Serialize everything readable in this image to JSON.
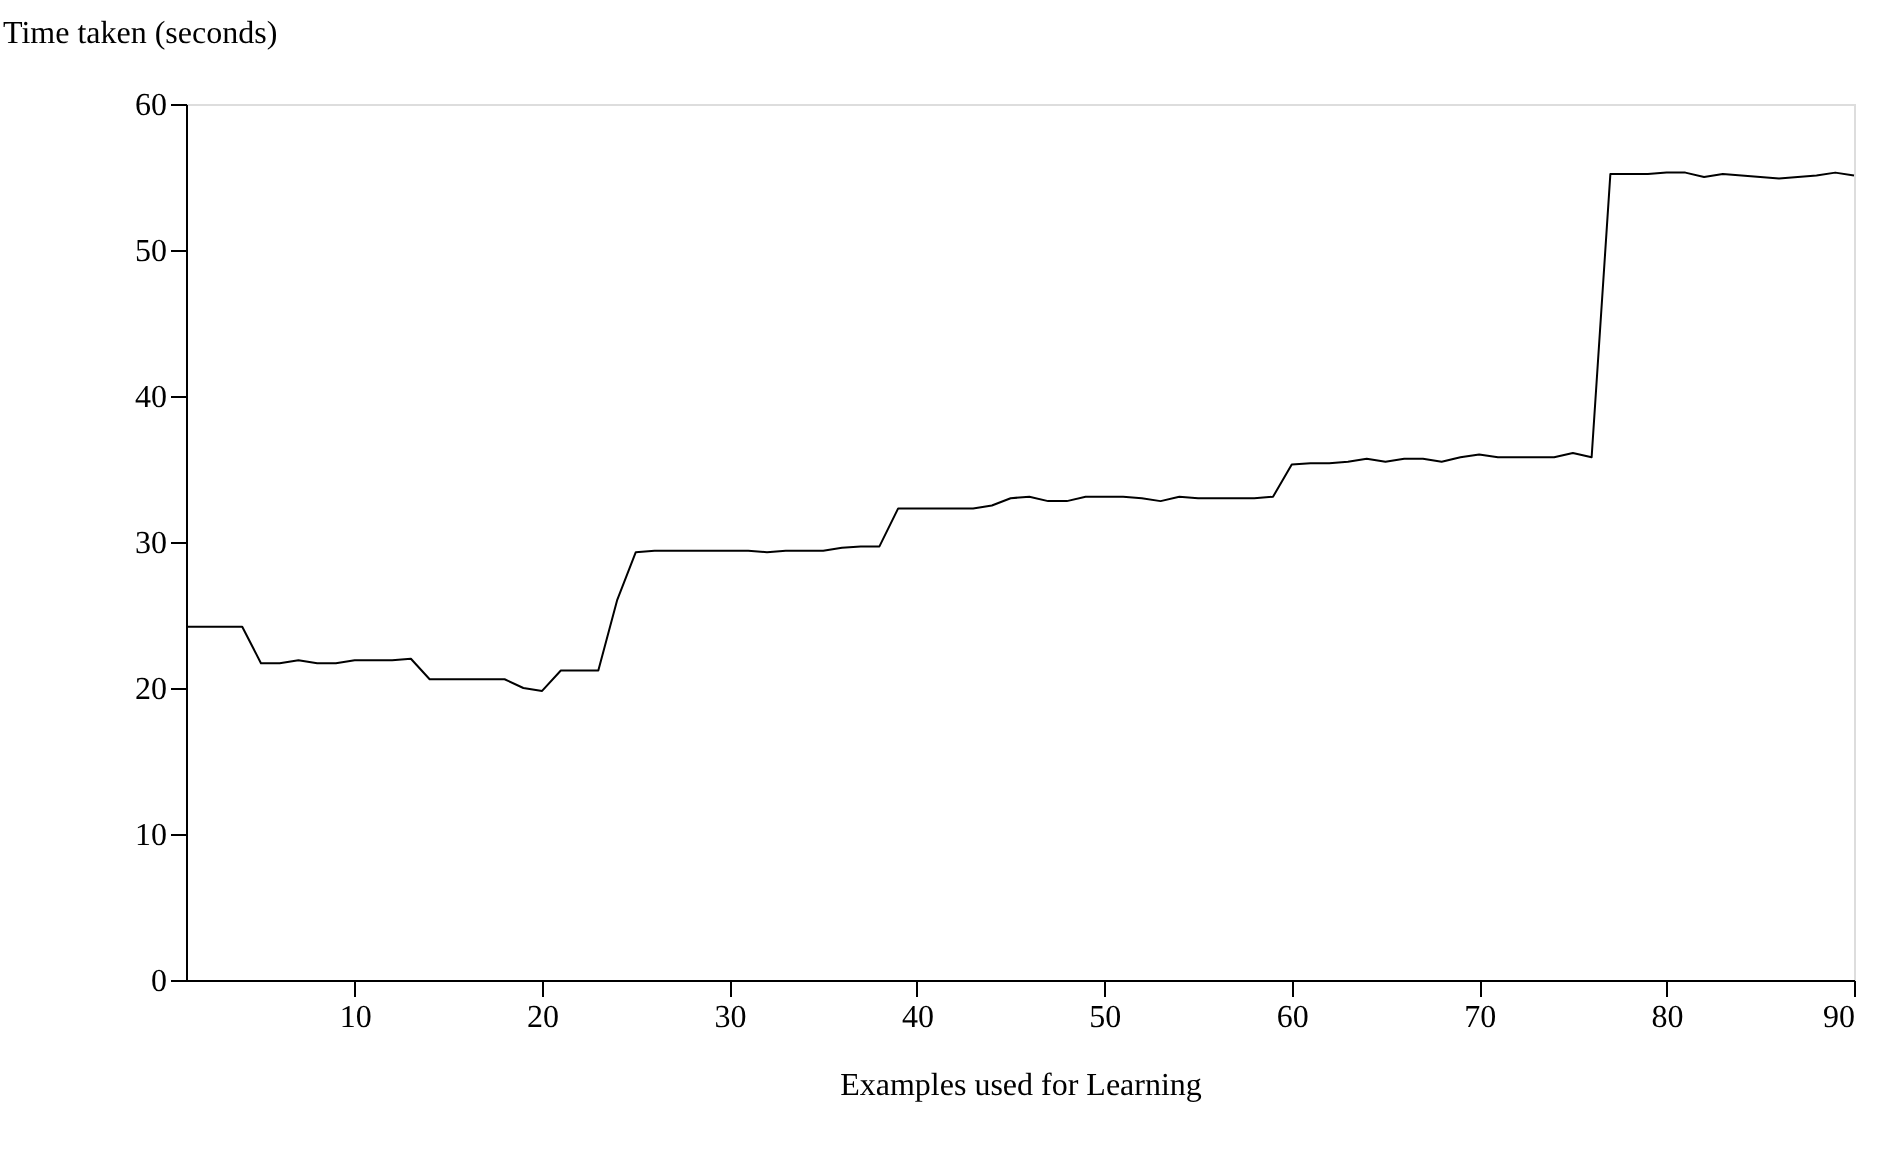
{
  "chart_data": {
    "type": "line",
    "xlabel": "Examples used for Learning",
    "ylabel": "Time taken (seconds)",
    "x": [
      1,
      2,
      3,
      4,
      5,
      6,
      7,
      8,
      9,
      10,
      11,
      12,
      13,
      14,
      15,
      16,
      17,
      18,
      19,
      20,
      21,
      22,
      23,
      24,
      25,
      26,
      27,
      28,
      29,
      30,
      31,
      32,
      33,
      34,
      35,
      36,
      37,
      38,
      39,
      40,
      41,
      42,
      43,
      44,
      45,
      46,
      47,
      48,
      49,
      50,
      51,
      52,
      53,
      54,
      55,
      56,
      57,
      58,
      59,
      60,
      61,
      62,
      63,
      64,
      65,
      66,
      67,
      68,
      69,
      70,
      71,
      72,
      73,
      74,
      75,
      76,
      77,
      78,
      79,
      80,
      81,
      82,
      83,
      84,
      85,
      86,
      87,
      88,
      89,
      90
    ],
    "series": [
      {
        "color": "#000000",
        "values": [
          24.2,
          24.2,
          24.2,
          24.2,
          21.7,
          21.7,
          21.9,
          21.7,
          21.7,
          21.9,
          21.9,
          21.9,
          22.0,
          20.6,
          20.6,
          20.6,
          20.6,
          20.6,
          20.0,
          19.8,
          21.2,
          21.2,
          21.2,
          26.0,
          29.3,
          29.4,
          29.4,
          29.4,
          29.4,
          29.4,
          29.4,
          29.3,
          29.4,
          29.4,
          29.4,
          29.6,
          29.7,
          29.7,
          32.3,
          32.3,
          32.3,
          32.3,
          32.3,
          32.5,
          33.0,
          33.1,
          32.8,
          32.8,
          33.1,
          33.1,
          33.1,
          33.0,
          32.8,
          33.1,
          33.0,
          33.0,
          33.0,
          33.0,
          33.1,
          35.3,
          35.4,
          35.4,
          35.5,
          35.7,
          35.5,
          35.7,
          35.7,
          35.5,
          35.8,
          36.0,
          35.8,
          35.8,
          35.8,
          35.8,
          36.1,
          35.8,
          55.2,
          55.2,
          55.2,
          55.3,
          55.3,
          55.0,
          55.2,
          55.1,
          55.0,
          54.9,
          55.0,
          55.1,
          55.3,
          55.1
        ]
      }
    ],
    "xlim": [
      1,
      90
    ],
    "ylim": [
      0,
      60
    ],
    "xticks": [
      10,
      20,
      30,
      40,
      50,
      60,
      70,
      80,
      90
    ],
    "yticks": [
      0,
      10,
      20,
      30,
      40,
      50,
      60
    ],
    "grid": false,
    "legend": false,
    "marker": "none",
    "line_style": "solid"
  }
}
